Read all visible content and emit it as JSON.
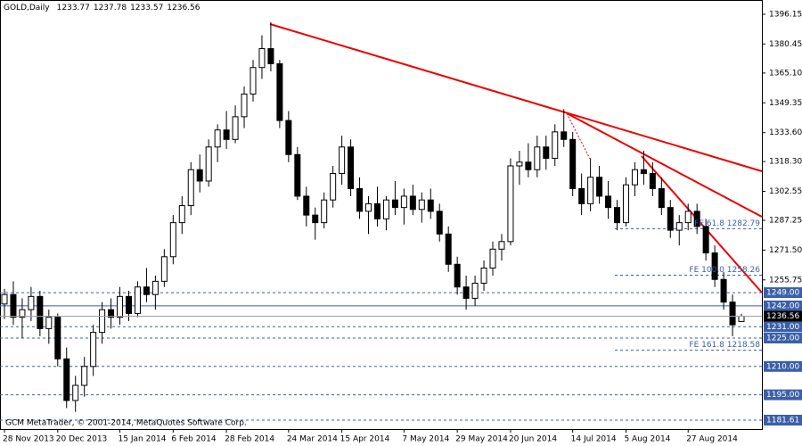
{
  "chart_data": {
    "type": "candlestick",
    "title": "GOLD,Daily",
    "watermark": "GCM MetaTrader, © 2001-2014, MetaQuotes Software Corp.",
    "categories": [
      "28 Nov 2013",
      null,
      null,
      null,
      null,
      null,
      "20 Dec 2013",
      null,
      null,
      null,
      null,
      null,
      null,
      "15 Jan 2014",
      null,
      null,
      null,
      null,
      null,
      "6 Feb 2014",
      null,
      null,
      null,
      null,
      null,
      "28 Feb 2014",
      null,
      null,
      null,
      null,
      null,
      null,
      "24 Mar 2014",
      null,
      null,
      null,
      null,
      null,
      "15 Apr 2014",
      null,
      null,
      null,
      null,
      null,
      null,
      "7 May 2014",
      null,
      null,
      null,
      null,
      null,
      "29 May 2014",
      null,
      null,
      null,
      null,
      null,
      "20 Jun 2014",
      null,
      null,
      null,
      null,
      null,
      null,
      "14 Jul 2014",
      null,
      null,
      null,
      null,
      null,
      "5 Aug 2014",
      null,
      null,
      null,
      null,
      null,
      null,
      "27 Aug 2014",
      null,
      null,
      null,
      null,
      null,
      null
    ],
    "candles": [
      [
        1243,
        1251,
        1235,
        1248
      ],
      [
        1248,
        1255,
        1232,
        1236
      ],
      [
        1236,
        1246,
        1225,
        1240
      ],
      [
        1240,
        1252,
        1234,
        1247
      ],
      [
        1247,
        1250,
        1226,
        1230
      ],
      [
        1230,
        1240,
        1222,
        1236
      ],
      [
        1236,
        1238,
        1210,
        1214
      ],
      [
        1214,
        1220,
        1188,
        1192
      ],
      [
        1192,
        1205,
        1186,
        1200
      ],
      [
        1200,
        1215,
        1194,
        1210
      ],
      [
        1210,
        1232,
        1205,
        1228
      ],
      [
        1228,
        1244,
        1222,
        1240
      ],
      [
        1240,
        1246,
        1230,
        1236
      ],
      [
        1236,
        1252,
        1232,
        1247
      ],
      [
        1247,
        1250,
        1234,
        1238
      ],
      [
        1238,
        1255,
        1236,
        1252
      ],
      [
        1252,
        1262,
        1244,
        1248
      ],
      [
        1248,
        1258,
        1240,
        1255
      ],
      [
        1255,
        1272,
        1252,
        1268
      ],
      [
        1268,
        1290,
        1264,
        1286
      ],
      [
        1286,
        1300,
        1280,
        1295
      ],
      [
        1295,
        1318,
        1290,
        1314
      ],
      [
        1314,
        1322,
        1302,
        1308
      ],
      [
        1308,
        1330,
        1305,
        1326
      ],
      [
        1326,
        1338,
        1318,
        1335
      ],
      [
        1335,
        1345,
        1325,
        1330
      ],
      [
        1330,
        1348,
        1328,
        1342
      ],
      [
        1342,
        1358,
        1336,
        1354
      ],
      [
        1354,
        1372,
        1350,
        1368
      ],
      [
        1368,
        1385,
        1362,
        1378
      ],
      [
        1378,
        1392,
        1366,
        1370
      ],
      [
        1370,
        1372,
        1336,
        1340
      ],
      [
        1340,
        1345,
        1318,
        1322
      ],
      [
        1322,
        1326,
        1298,
        1300
      ],
      [
        1300,
        1305,
        1284,
        1290
      ],
      [
        1290,
        1294,
        1277,
        1286
      ],
      [
        1286,
        1302,
        1283,
        1298
      ],
      [
        1298,
        1316,
        1294,
        1312
      ],
      [
        1312,
        1332,
        1306,
        1326
      ],
      [
        1326,
        1330,
        1300,
        1304
      ],
      [
        1304,
        1310,
        1288,
        1292
      ],
      [
        1292,
        1300,
        1280,
        1296
      ],
      [
        1296,
        1305,
        1284,
        1288
      ],
      [
        1288,
        1300,
        1282,
        1298
      ],
      [
        1298,
        1308,
        1290,
        1294
      ],
      [
        1294,
        1304,
        1285,
        1300
      ],
      [
        1300,
        1306,
        1290,
        1293
      ],
      [
        1293,
        1302,
        1286,
        1298
      ],
      [
        1298,
        1304,
        1288,
        1292
      ],
      [
        1292,
        1296,
        1276,
        1280
      ],
      [
        1280,
        1284,
        1260,
        1264
      ],
      [
        1264,
        1268,
        1248,
        1252
      ],
      [
        1252,
        1258,
        1240,
        1246
      ],
      [
        1246,
        1258,
        1242,
        1254
      ],
      [
        1254,
        1266,
        1250,
        1262
      ],
      [
        1262,
        1276,
        1258,
        1272
      ],
      [
        1272,
        1280,
        1266,
        1276
      ],
      [
        1276,
        1320,
        1274,
        1316
      ],
      [
        1316,
        1324,
        1306,
        1318
      ],
      [
        1318,
        1328,
        1310,
        1314
      ],
      [
        1314,
        1332,
        1310,
        1326
      ],
      [
        1326,
        1332,
        1314,
        1320
      ],
      [
        1320,
        1338,
        1316,
        1334
      ],
      [
        1334,
        1346,
        1326,
        1330
      ],
      [
        1330,
        1334,
        1300,
        1304
      ],
      [
        1304,
        1312,
        1290,
        1296
      ],
      [
        1296,
        1320,
        1292,
        1310
      ],
      [
        1310,
        1316,
        1296,
        1300
      ],
      [
        1300,
        1308,
        1288,
        1294
      ],
      [
        1294,
        1298,
        1282,
        1286
      ],
      [
        1286,
        1310,
        1284,
        1306
      ],
      [
        1306,
        1318,
        1300,
        1314
      ],
      [
        1314,
        1324,
        1306,
        1312
      ],
      [
        1312,
        1318,
        1300,
        1304
      ],
      [
        1304,
        1310,
        1290,
        1294
      ],
      [
        1294,
        1298,
        1278,
        1282
      ],
      [
        1282,
        1290,
        1274,
        1286
      ],
      [
        1286,
        1296,
        1282,
        1292
      ],
      [
        1292,
        1296,
        1280,
        1284
      ],
      [
        1284,
        1288,
        1266,
        1270
      ],
      [
        1270,
        1274,
        1252,
        1256
      ],
      [
        1256,
        1260,
        1240,
        1244
      ],
      [
        1244,
        1248,
        1226,
        1232
      ],
      [
        1233.77,
        1237.78,
        1233.57,
        1236.56
      ]
    ],
    "ylim": [
      1176.9,
      1403.7
    ],
    "yticks": [
      1396.15,
      1380.45,
      {
        "value": 1365.1,
        "label": "1365.10"
      },
      1349.35,
      {
        "value": 1333.6,
        "label": "1333.60"
      },
      {
        "value": 1318.3,
        "label": "1318.30"
      },
      1302.55,
      1287.25,
      {
        "value": 1271.5,
        "label": "1271.50"
      },
      1255.75
    ],
    "levels": [
      {
        "value": 1249,
        "label": "1249.00",
        "style": "dotted"
      },
      {
        "value": 1242,
        "label": "1242.00",
        "style": "solid"
      },
      {
        "value": 1231,
        "label": "1231.00",
        "style": "dotted"
      },
      {
        "value": 1225,
        "label": "1225.00",
        "style": "dotted"
      },
      {
        "value": 1210,
        "label": "1210.00",
        "style": "dotted"
      },
      {
        "value": 1195,
        "label": "1195.00",
        "style": "dotted"
      },
      {
        "value": 1181.61,
        "label": "1181.61",
        "style": "dotted"
      }
    ],
    "fib_levels": [
      {
        "value": 1282.79,
        "label": "FE 61.8 1282.79"
      },
      {
        "value": 1258.26,
        "label": "FE 100.0 1258.26"
      },
      {
        "value": 1218.58,
        "label": "FE 161.8 1218.58"
      }
    ],
    "colors": {
      "bull": "#ffffff",
      "bear": "#000000",
      "level": "#3b5fa8",
      "price_line": "#a0a0a0"
    }
  }
}
